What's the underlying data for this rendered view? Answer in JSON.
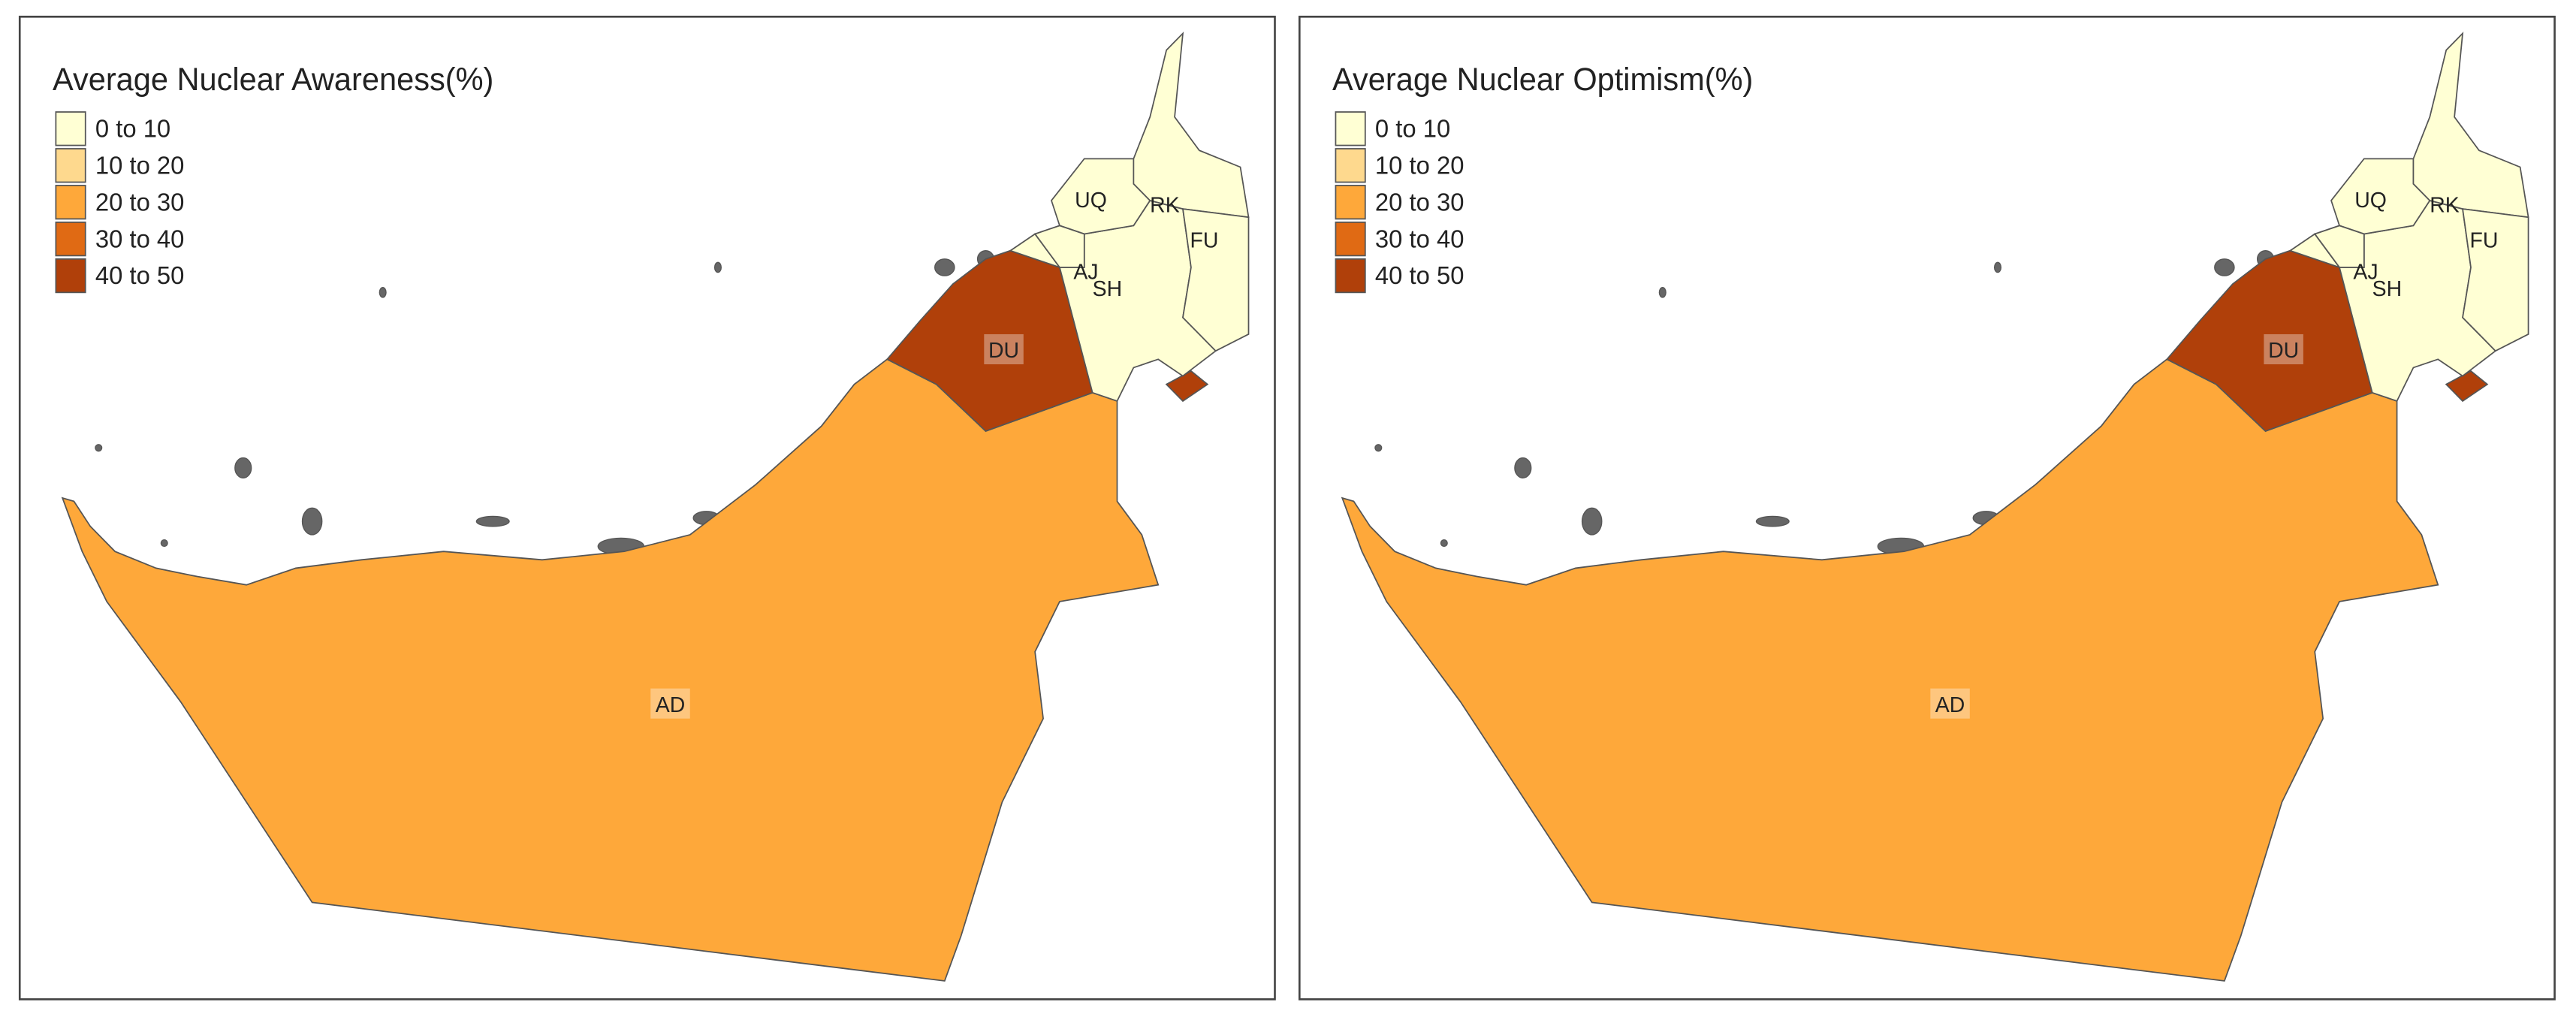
{
  "maps": [
    {
      "title": "Average Nuclear Awareness(%)",
      "legend": [
        {
          "label": "0 to 10",
          "color": "#ffffd4"
        },
        {
          "label": "10 to 20",
          "color": "#fed98e"
        },
        {
          "label": "20 to 30",
          "color": "#fea83a"
        },
        {
          "label": "30 to 40",
          "color": "#e06a14"
        },
        {
          "label": "40 to 50",
          "color": "#b0400a"
        }
      ],
      "regions": [
        {
          "label": "AD",
          "color": "#fea83a"
        },
        {
          "label": "DU",
          "color": "#b0400a"
        },
        {
          "label": "SH",
          "color": "#ffffd4"
        },
        {
          "label": "UQ",
          "color": "#ffffd4"
        },
        {
          "label": "RK",
          "color": "#ffffd4"
        },
        {
          "label": "FU",
          "color": "#ffffd4"
        },
        {
          "label": "AJ",
          "color": "#ffffd4"
        }
      ]
    },
    {
      "title": "Average Nuclear Optimism(%)",
      "legend": [
        {
          "label": "0 to 10",
          "color": "#ffffd4"
        },
        {
          "label": "10 to 20",
          "color": "#fed98e"
        },
        {
          "label": "20 to 30",
          "color": "#fea83a"
        },
        {
          "label": "30 to 40",
          "color": "#e06a14"
        },
        {
          "label": "40 to 50",
          "color": "#b0400a"
        }
      ],
      "regions": [
        {
          "label": "AD",
          "color": "#fea83a"
        },
        {
          "label": "DU",
          "color": "#b0400a"
        },
        {
          "label": "SH",
          "color": "#ffffd4"
        },
        {
          "label": "UQ",
          "color": "#ffffd4"
        },
        {
          "label": "RK",
          "color": "#ffffd4"
        },
        {
          "label": "FU",
          "color": "#ffffd4"
        },
        {
          "label": "AJ",
          "color": "#ffffd4"
        }
      ]
    }
  ]
}
